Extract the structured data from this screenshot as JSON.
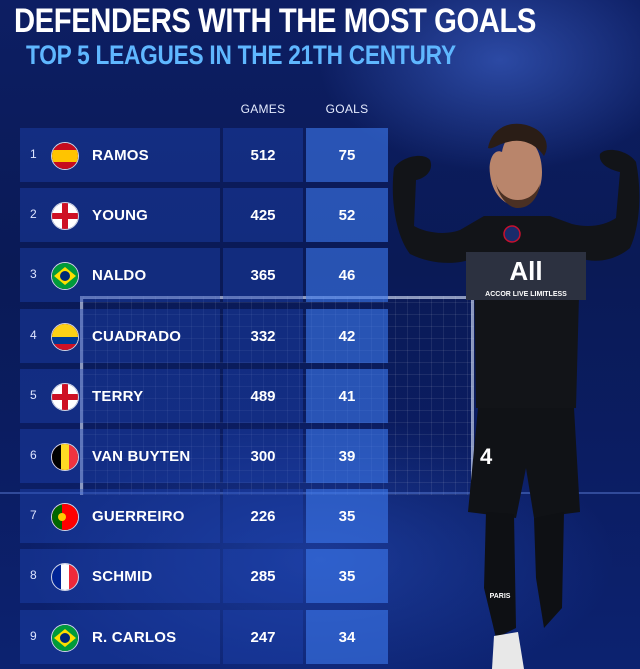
{
  "header": {
    "title": "DEFENDERS WITH THE MOST GOALS",
    "subtitle": "TOP 5 LEAGUES IN THE 21TH CENTURY"
  },
  "columns": {
    "games": "GAMES",
    "goals": "GOALS"
  },
  "rows": [
    {
      "rank": "1",
      "name": "RAMOS",
      "games": "512",
      "goals": "75",
      "flag": "spain-flag-icon"
    },
    {
      "rank": "2",
      "name": "YOUNG",
      "games": "425",
      "goals": "52",
      "flag": "england-flag-icon"
    },
    {
      "rank": "3",
      "name": "NALDO",
      "games": "365",
      "goals": "46",
      "flag": "brazil-flag-icon"
    },
    {
      "rank": "4",
      "name": "CUADRADO",
      "games": "332",
      "goals": "42",
      "flag": "colombia-flag-icon"
    },
    {
      "rank": "5",
      "name": "TERRY",
      "games": "489",
      "goals": "41",
      "flag": "england-flag-icon"
    },
    {
      "rank": "6",
      "name": "VAN BUYTEN",
      "games": "300",
      "goals": "39",
      "flag": "belgium-flag-icon"
    },
    {
      "rank": "7",
      "name": "GUERREIRO",
      "games": "226",
      "goals": "35",
      "flag": "portugal-flag-icon"
    },
    {
      "rank": "8",
      "name": "SCHMID",
      "games": "285",
      "goals": "35",
      "flag": "france-flag-icon"
    },
    {
      "rank": "9",
      "name": "R. CARLOS",
      "games": "247",
      "goals": "34",
      "flag": "brazil-flag-icon"
    }
  ],
  "player_shirt": {
    "sponsor_logo": "All",
    "sponsor_tagline": "ACCOR LIVE LIMITLESS",
    "number": "4",
    "shorts_text": "PARIS"
  },
  "colors": {
    "subtitle": "#5fb7ff",
    "background": "#0a1a56",
    "goals_cell": "#3c78eb"
  }
}
